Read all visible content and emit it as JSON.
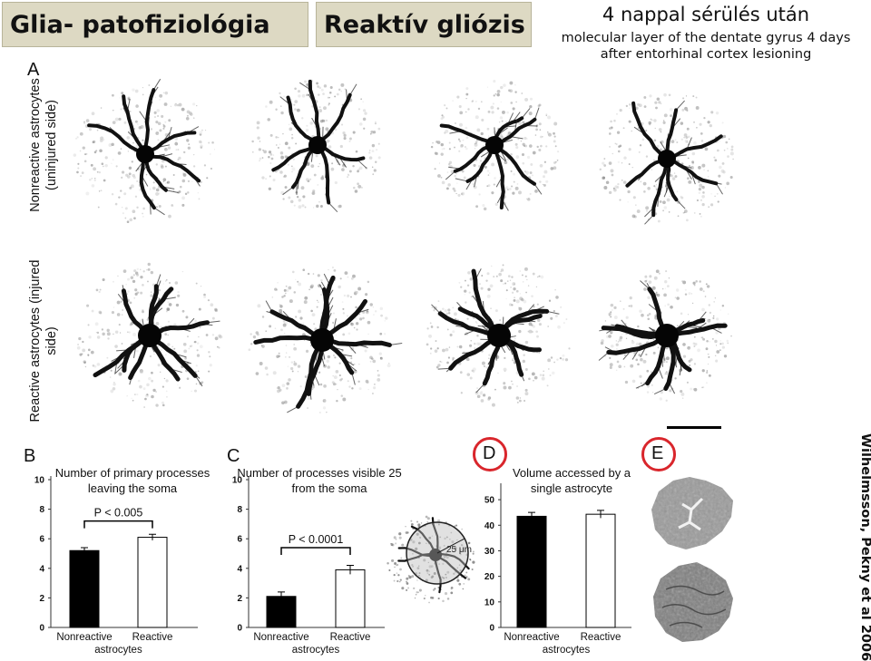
{
  "header": {
    "title_left": "Glia- patofiziológia",
    "title_mid": "Reaktív gliózis",
    "subtitle_big": "4 nappal sérülés után",
    "subtitle_small": "molecular layer of the dentate gyrus 4 days after entorhinal cortex lesioning"
  },
  "panel_a": {
    "letter": "A",
    "row_top_label": "Nonreactive astrocytes (uninjured side)",
    "row_bottom_label": "Reactive astrocytes (injured side)"
  },
  "panel_d_letter": "D",
  "panel_e_letter": "E",
  "inset_label": "25 μm",
  "credit": "Wilhelmsson, Pekny et al 2006",
  "colors": {
    "title_box": "#ddd9c3",
    "highlight_ring": "#d9262c",
    "bar_nonreactive": "#000000",
    "bar_reactive": "#ffffff"
  },
  "chart_data": [
    {
      "type": "bar",
      "panel": "B",
      "title": "Number of primary processes leaving the soma",
      "categories": [
        "Nonreactive",
        "Reactive"
      ],
      "xlabel": "astrocytes",
      "values": [
        5.2,
        6.1
      ],
      "errors": [
        0.2,
        0.2
      ],
      "ylim": [
        0,
        10
      ],
      "yticks": [
        0,
        2,
        4,
        6,
        8,
        10
      ],
      "significance": "P < 0.005"
    },
    {
      "type": "bar",
      "panel": "C",
      "title": "Number of processes visible 25 μm from the soma",
      "categories": [
        "Nonreactive",
        "Reactive"
      ],
      "xlabel": "astrocytes",
      "values": [
        2.1,
        3.9
      ],
      "errors": [
        0.3,
        0.3
      ],
      "ylim": [
        0,
        10
      ],
      "yticks": [
        0,
        2,
        4,
        6,
        8,
        10
      ],
      "significance": "P < 0.0001"
    },
    {
      "type": "bar",
      "panel": "D",
      "title": "Volume accessed by a single astrocyte",
      "categories": [
        "Nonreactive",
        "Reactive"
      ],
      "xlabel": "astrocytes",
      "values": [
        43.5,
        44.3
      ],
      "errors": [
        1.5,
        1.5
      ],
      "ylim": [
        0,
        55
      ],
      "yticks": [
        0,
        10,
        20,
        30,
        40,
        50
      ],
      "significance": ""
    }
  ]
}
